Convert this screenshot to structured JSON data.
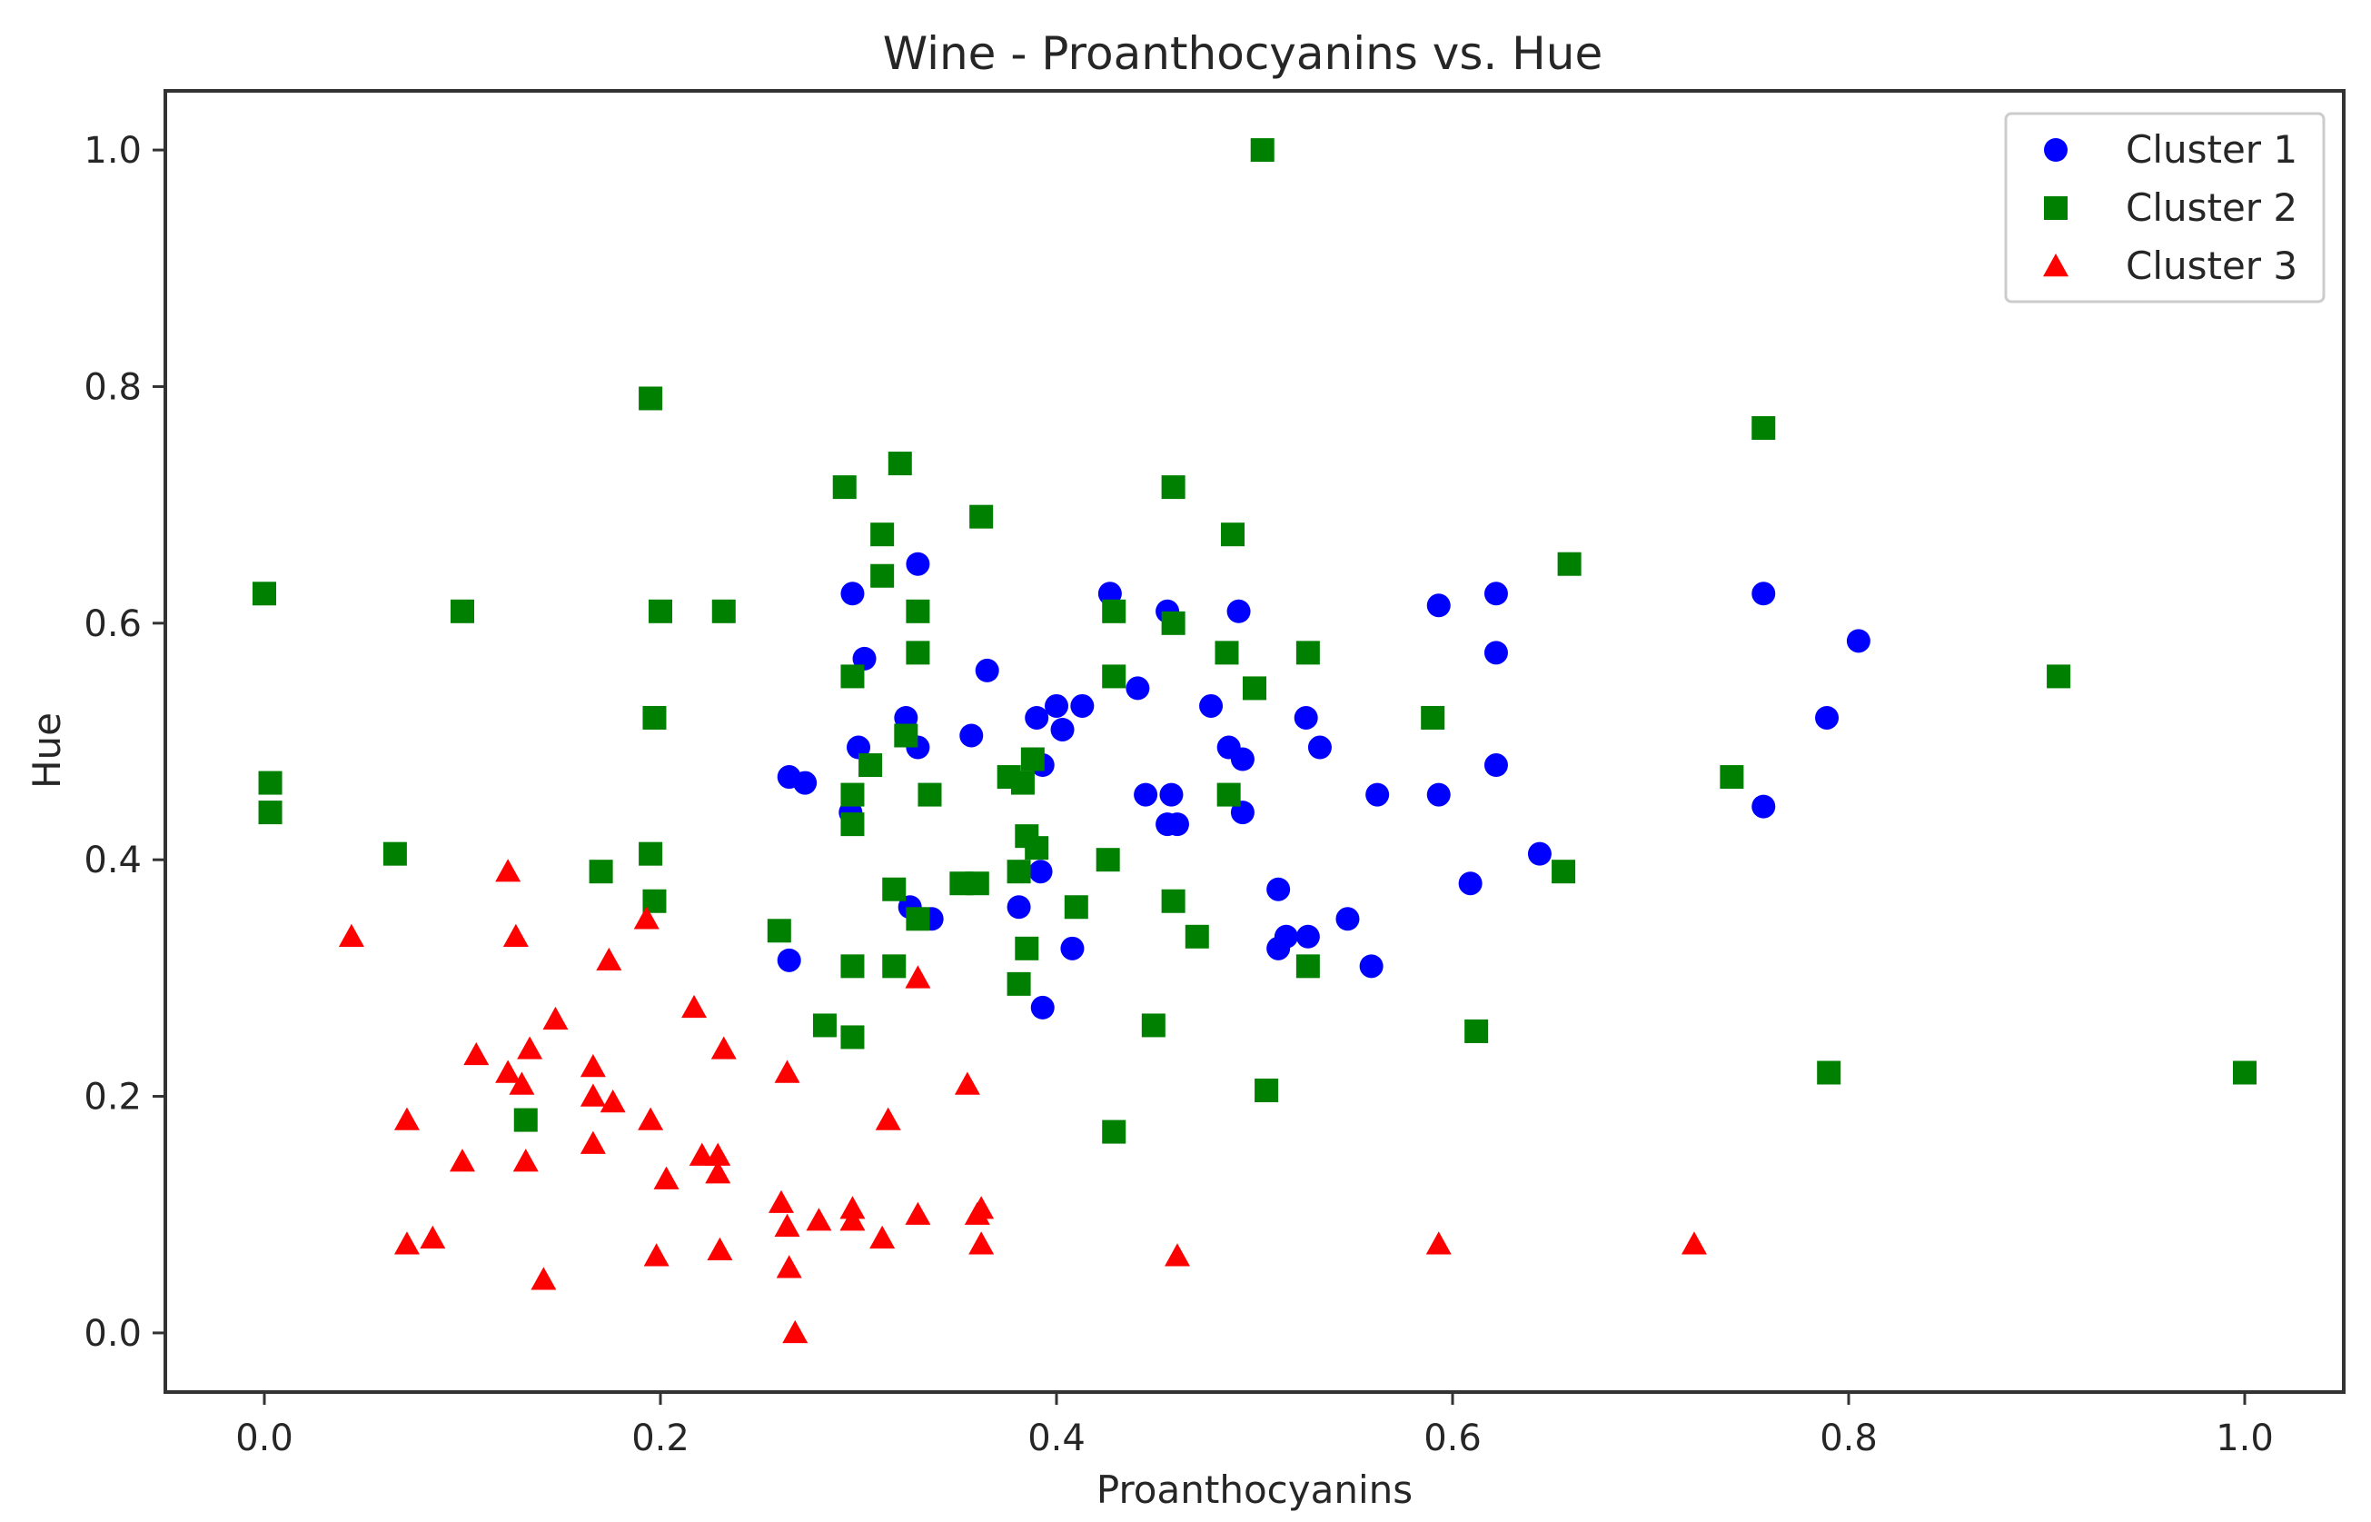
{
  "chart_data": {
    "type": "scatter",
    "title": "Wine - Proanthocyanins vs. Hue",
    "xlabel": "Proanthocyanins",
    "ylabel": "Hue",
    "xlim": [
      -0.05,
      1.05
    ],
    "ylim": [
      -0.05,
      1.05
    ],
    "xticks": [
      0.0,
      0.2,
      0.4,
      0.6,
      0.8,
      1.0
    ],
    "xtick_labels": [
      "0.0",
      "0.2",
      "0.4",
      "0.6",
      "0.8",
      "1.0"
    ],
    "yticks": [
      0.0,
      0.2,
      0.4,
      0.6,
      0.8,
      1.0
    ],
    "ytick_labels": [
      "0.0",
      "0.2",
      "0.4",
      "0.6",
      "0.8",
      "1.0"
    ],
    "grid": false,
    "legend_position": "top-right",
    "series": [
      {
        "name": "Cluster 1",
        "marker": "circle",
        "color": "#0000ff",
        "points": [
          [
            0.296,
            0.44
          ],
          [
            0.297,
            0.625
          ],
          [
            0.3,
            0.495
          ],
          [
            0.303,
            0.57
          ],
          [
            0.33,
            0.65
          ],
          [
            0.33,
            0.495
          ],
          [
            0.324,
            0.52
          ],
          [
            0.326,
            0.36
          ],
          [
            0.337,
            0.35
          ],
          [
            0.265,
            0.47
          ],
          [
            0.273,
            0.465
          ],
          [
            0.265,
            0.315
          ],
          [
            0.357,
            0.505
          ],
          [
            0.365,
            0.56
          ],
          [
            0.39,
            0.52
          ],
          [
            0.393,
            0.48
          ],
          [
            0.4,
            0.53
          ],
          [
            0.403,
            0.51
          ],
          [
            0.413,
            0.53
          ],
          [
            0.381,
            0.36
          ],
          [
            0.392,
            0.39
          ],
          [
            0.393,
            0.275
          ],
          [
            0.408,
            0.325
          ],
          [
            0.427,
            0.625
          ],
          [
            0.441,
            0.545
          ],
          [
            0.445,
            0.455
          ],
          [
            0.456,
            0.61
          ],
          [
            0.458,
            0.455
          ],
          [
            0.456,
            0.43
          ],
          [
            0.461,
            0.43
          ],
          [
            0.478,
            0.53
          ],
          [
            0.487,
            0.495
          ],
          [
            0.492,
            0.61
          ],
          [
            0.494,
            0.485
          ],
          [
            0.494,
            0.44
          ],
          [
            0.512,
            0.375
          ],
          [
            0.512,
            0.325
          ],
          [
            0.516,
            0.335
          ],
          [
            0.526,
            0.52
          ],
          [
            0.527,
            0.335
          ],
          [
            0.533,
            0.495
          ],
          [
            0.547,
            0.35
          ],
          [
            0.559,
            0.31
          ],
          [
            0.562,
            0.455
          ],
          [
            0.593,
            0.615
          ],
          [
            0.593,
            0.455
          ],
          [
            0.609,
            0.38
          ],
          [
            0.622,
            0.625
          ],
          [
            0.622,
            0.575
          ],
          [
            0.622,
            0.48
          ],
          [
            0.644,
            0.405
          ],
          [
            0.757,
            0.625
          ],
          [
            0.757,
            0.445
          ],
          [
            0.789,
            0.52
          ],
          [
            0.805,
            0.585
          ]
        ]
      },
      {
        "name": "Cluster 2",
        "marker": "square",
        "color": "#008000",
        "points": [
          [
            0.0,
            0.625
          ],
          [
            0.003,
            0.465
          ],
          [
            0.003,
            0.44
          ],
          [
            0.066,
            0.405
          ],
          [
            0.1,
            0.61
          ],
          [
            0.132,
            0.18
          ],
          [
            0.17,
            0.39
          ],
          [
            0.195,
            0.79
          ],
          [
            0.195,
            0.405
          ],
          [
            0.197,
            0.52
          ],
          [
            0.197,
            0.365
          ],
          [
            0.2,
            0.61
          ],
          [
            0.232,
            0.61
          ],
          [
            0.26,
            0.34
          ],
          [
            0.283,
            0.26
          ],
          [
            0.293,
            0.715
          ],
          [
            0.297,
            0.555
          ],
          [
            0.297,
            0.455
          ],
          [
            0.297,
            0.43
          ],
          [
            0.297,
            0.31
          ],
          [
            0.297,
            0.25
          ],
          [
            0.306,
            0.48
          ],
          [
            0.312,
            0.675
          ],
          [
            0.312,
            0.64
          ],
          [
            0.318,
            0.375
          ],
          [
            0.318,
            0.31
          ],
          [
            0.321,
            0.735
          ],
          [
            0.324,
            0.505
          ],
          [
            0.33,
            0.61
          ],
          [
            0.33,
            0.575
          ],
          [
            0.33,
            0.35
          ],
          [
            0.336,
            0.455
          ],
          [
            0.352,
            0.38
          ],
          [
            0.36,
            0.38
          ],
          [
            0.362,
            0.69
          ],
          [
            0.376,
            0.47
          ],
          [
            0.381,
            0.39
          ],
          [
            0.381,
            0.295
          ],
          [
            0.383,
            0.465
          ],
          [
            0.385,
            0.42
          ],
          [
            0.385,
            0.325
          ],
          [
            0.388,
            0.485
          ],
          [
            0.39,
            0.41
          ],
          [
            0.41,
            0.36
          ],
          [
            0.426,
            0.4
          ],
          [
            0.429,
            0.61
          ],
          [
            0.429,
            0.555
          ],
          [
            0.429,
            0.17
          ],
          [
            0.449,
            0.26
          ],
          [
            0.459,
            0.715
          ],
          [
            0.459,
            0.6
          ],
          [
            0.459,
            0.365
          ],
          [
            0.471,
            0.335
          ],
          [
            0.486,
            0.575
          ],
          [
            0.487,
            0.455
          ],
          [
            0.489,
            0.675
          ],
          [
            0.5,
            0.545
          ],
          [
            0.504,
            1.0
          ],
          [
            0.506,
            0.205
          ],
          [
            0.527,
            0.575
          ],
          [
            0.527,
            0.31
          ],
          [
            0.59,
            0.52
          ],
          [
            0.612,
            0.255
          ],
          [
            0.656,
            0.39
          ],
          [
            0.659,
            0.65
          ],
          [
            0.741,
            0.47
          ],
          [
            0.757,
            0.765
          ],
          [
            0.79,
            0.22
          ],
          [
            0.906,
            0.555
          ],
          [
            1.0,
            0.22
          ]
        ]
      },
      {
        "name": "Cluster 3",
        "marker": "triangle",
        "color": "#ff0000",
        "points": [
          [
            0.044,
            0.335
          ],
          [
            0.072,
            0.18
          ],
          [
            0.072,
            0.075
          ],
          [
            0.085,
            0.08
          ],
          [
            0.1,
            0.145
          ],
          [
            0.107,
            0.235
          ],
          [
            0.123,
            0.22
          ],
          [
            0.123,
            0.39
          ],
          [
            0.127,
            0.335
          ],
          [
            0.13,
            0.21
          ],
          [
            0.132,
            0.145
          ],
          [
            0.134,
            0.24
          ],
          [
            0.141,
            0.045
          ],
          [
            0.147,
            0.265
          ],
          [
            0.166,
            0.225
          ],
          [
            0.166,
            0.2
          ],
          [
            0.166,
            0.16
          ],
          [
            0.174,
            0.315
          ],
          [
            0.176,
            0.195
          ],
          [
            0.193,
            0.35
          ],
          [
            0.195,
            0.18
          ],
          [
            0.198,
            0.065
          ],
          [
            0.203,
            0.13
          ],
          [
            0.217,
            0.275
          ],
          [
            0.221,
            0.15
          ],
          [
            0.229,
            0.15
          ],
          [
            0.229,
            0.135
          ],
          [
            0.23,
            0.07
          ],
          [
            0.232,
            0.24
          ],
          [
            0.261,
            0.11
          ],
          [
            0.264,
            0.09
          ],
          [
            0.264,
            0.22
          ],
          [
            0.265,
            0.055
          ],
          [
            0.268,
            0.0
          ],
          [
            0.28,
            0.095
          ],
          [
            0.297,
            0.105
          ],
          [
            0.297,
            0.095
          ],
          [
            0.312,
            0.08
          ],
          [
            0.315,
            0.18
          ],
          [
            0.33,
            0.3
          ],
          [
            0.33,
            0.1
          ],
          [
            0.355,
            0.21
          ],
          [
            0.36,
            0.1
          ],
          [
            0.362,
            0.105
          ],
          [
            0.362,
            0.075
          ],
          [
            0.461,
            0.065
          ],
          [
            0.593,
            0.075
          ],
          [
            0.722,
            0.075
          ]
        ]
      }
    ]
  }
}
